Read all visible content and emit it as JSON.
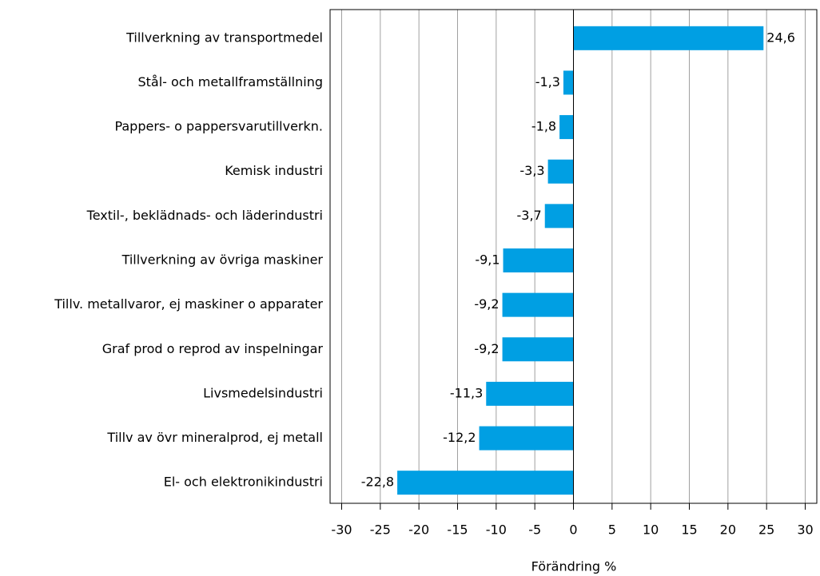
{
  "chart_data": {
    "type": "barh",
    "xlabel": "Förändring %",
    "categories": [
      "Tillverkning av transportmedel",
      "Stål- och metallframställning",
      "Pappers- o pappersvarutillverkn.",
      "Kemisk industri",
      "Textil-, beklädnads- och läderindustri",
      "Tillverkning av övriga maskiner",
      "Tillv. metallvaror, ej maskiner o apparater",
      "Graf prod o reprod av inspelningar",
      "Livsmedelsindustri",
      "Tillv av övr mineralprod, ej metall",
      "El- och elektronikindustri"
    ],
    "values": [
      24.6,
      -1.3,
      -1.8,
      -3.3,
      -3.7,
      -9.1,
      -9.2,
      -9.2,
      -11.3,
      -12.2,
      -22.8
    ],
    "value_labels": [
      "24,6",
      "-1,3",
      "-1,8",
      "-3,3",
      "-3,7",
      "-9,1",
      "-9,2",
      "-9,2",
      "-11,3",
      "-12,2",
      "-22,8"
    ],
    "color": "#009fe3",
    "xlim": [
      -31.5,
      31.5
    ],
    "xticks": [
      -30,
      -25,
      -20,
      -15,
      -10,
      -5,
      0,
      5,
      10,
      15,
      20,
      25,
      30
    ],
    "grid": true
  }
}
